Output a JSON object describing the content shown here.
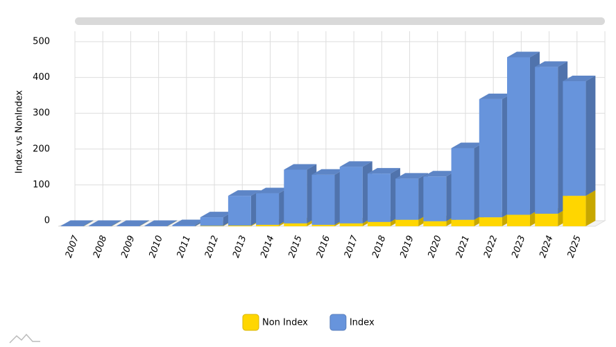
{
  "chart_data": {
    "type": "bar3d_stacked",
    "y_axis_label": "Index vs NonIndex",
    "categories": [
      "2007",
      "2008",
      "2009",
      "2010",
      "2011",
      "2012",
      "2013",
      "2014",
      "2015",
      "2016",
      "2017",
      "2018",
      "2019",
      "2020",
      "2021",
      "2022",
      "2023",
      "2024",
      "2025"
    ],
    "series": [
      {
        "name": "Non Index",
        "color": "#ffd600",
        "values": [
          0,
          0,
          0,
          0,
          0,
          1,
          2,
          4,
          8,
          4,
          8,
          12,
          18,
          14,
          18,
          25,
          32,
          35,
          85
        ]
      },
      {
        "name": "Index",
        "color": "#6794dc",
        "values": [
          1,
          1,
          1,
          1,
          3,
          24,
          83,
          88,
          150,
          140,
          158,
          135,
          115,
          125,
          200,
          330,
          440,
          410,
          320
        ]
      }
    ],
    "ylim": [
      0,
      500
    ],
    "yticks": [
      0,
      100,
      200,
      300,
      400,
      500
    ],
    "grid": true,
    "legend": "bottom"
  }
}
